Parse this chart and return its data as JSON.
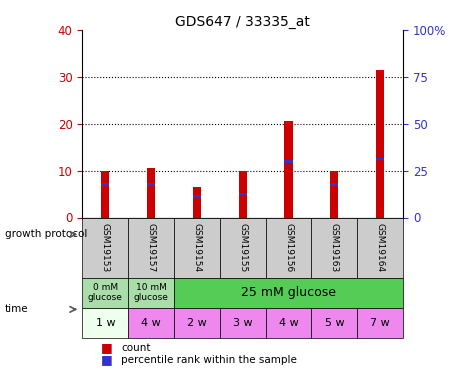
{
  "title": "GDS647 / 33335_at",
  "samples": [
    "GSM19153",
    "GSM19157",
    "GSM19154",
    "GSM19155",
    "GSM19156",
    "GSM19163",
    "GSM19164"
  ],
  "count_values": [
    10,
    10.5,
    6.5,
    10,
    20.5,
    10,
    31.5
  ],
  "percentile_values": [
    7,
    7,
    4.5,
    5,
    12,
    7,
    12.5
  ],
  "left_ylim": [
    0,
    40
  ],
  "right_ylim": [
    0,
    100
  ],
  "left_yticks": [
    0,
    10,
    20,
    30,
    40
  ],
  "right_yticks": [
    0,
    25,
    50,
    75,
    100
  ],
  "right_yticklabels": [
    "0",
    "25",
    "50",
    "75",
    "100%"
  ],
  "bar_color": "#cc0000",
  "percentile_color": "#3333cc",
  "growth_protocol_colors_light": "#aaddaa",
  "growth_protocol_color_main": "#55cc55",
  "sample_bg_color": "#cccccc",
  "time_bg_white": "#eeffee",
  "time_bg_pink": "#ee88ee",
  "bar_width": 0.18,
  "percentile_bar_height": 0.6,
  "legend_count_label": "count",
  "legend_percentile_label": "percentile rank within the sample",
  "time_labels": [
    "1 w",
    "4 w",
    "2 w",
    "3 w",
    "4 w",
    "5 w",
    "7 w"
  ],
  "time_bg": [
    "#eeffee",
    "#ee88ee",
    "#ee88ee",
    "#ee88ee",
    "#ee88ee",
    "#ee88ee",
    "#ee88ee"
  ]
}
